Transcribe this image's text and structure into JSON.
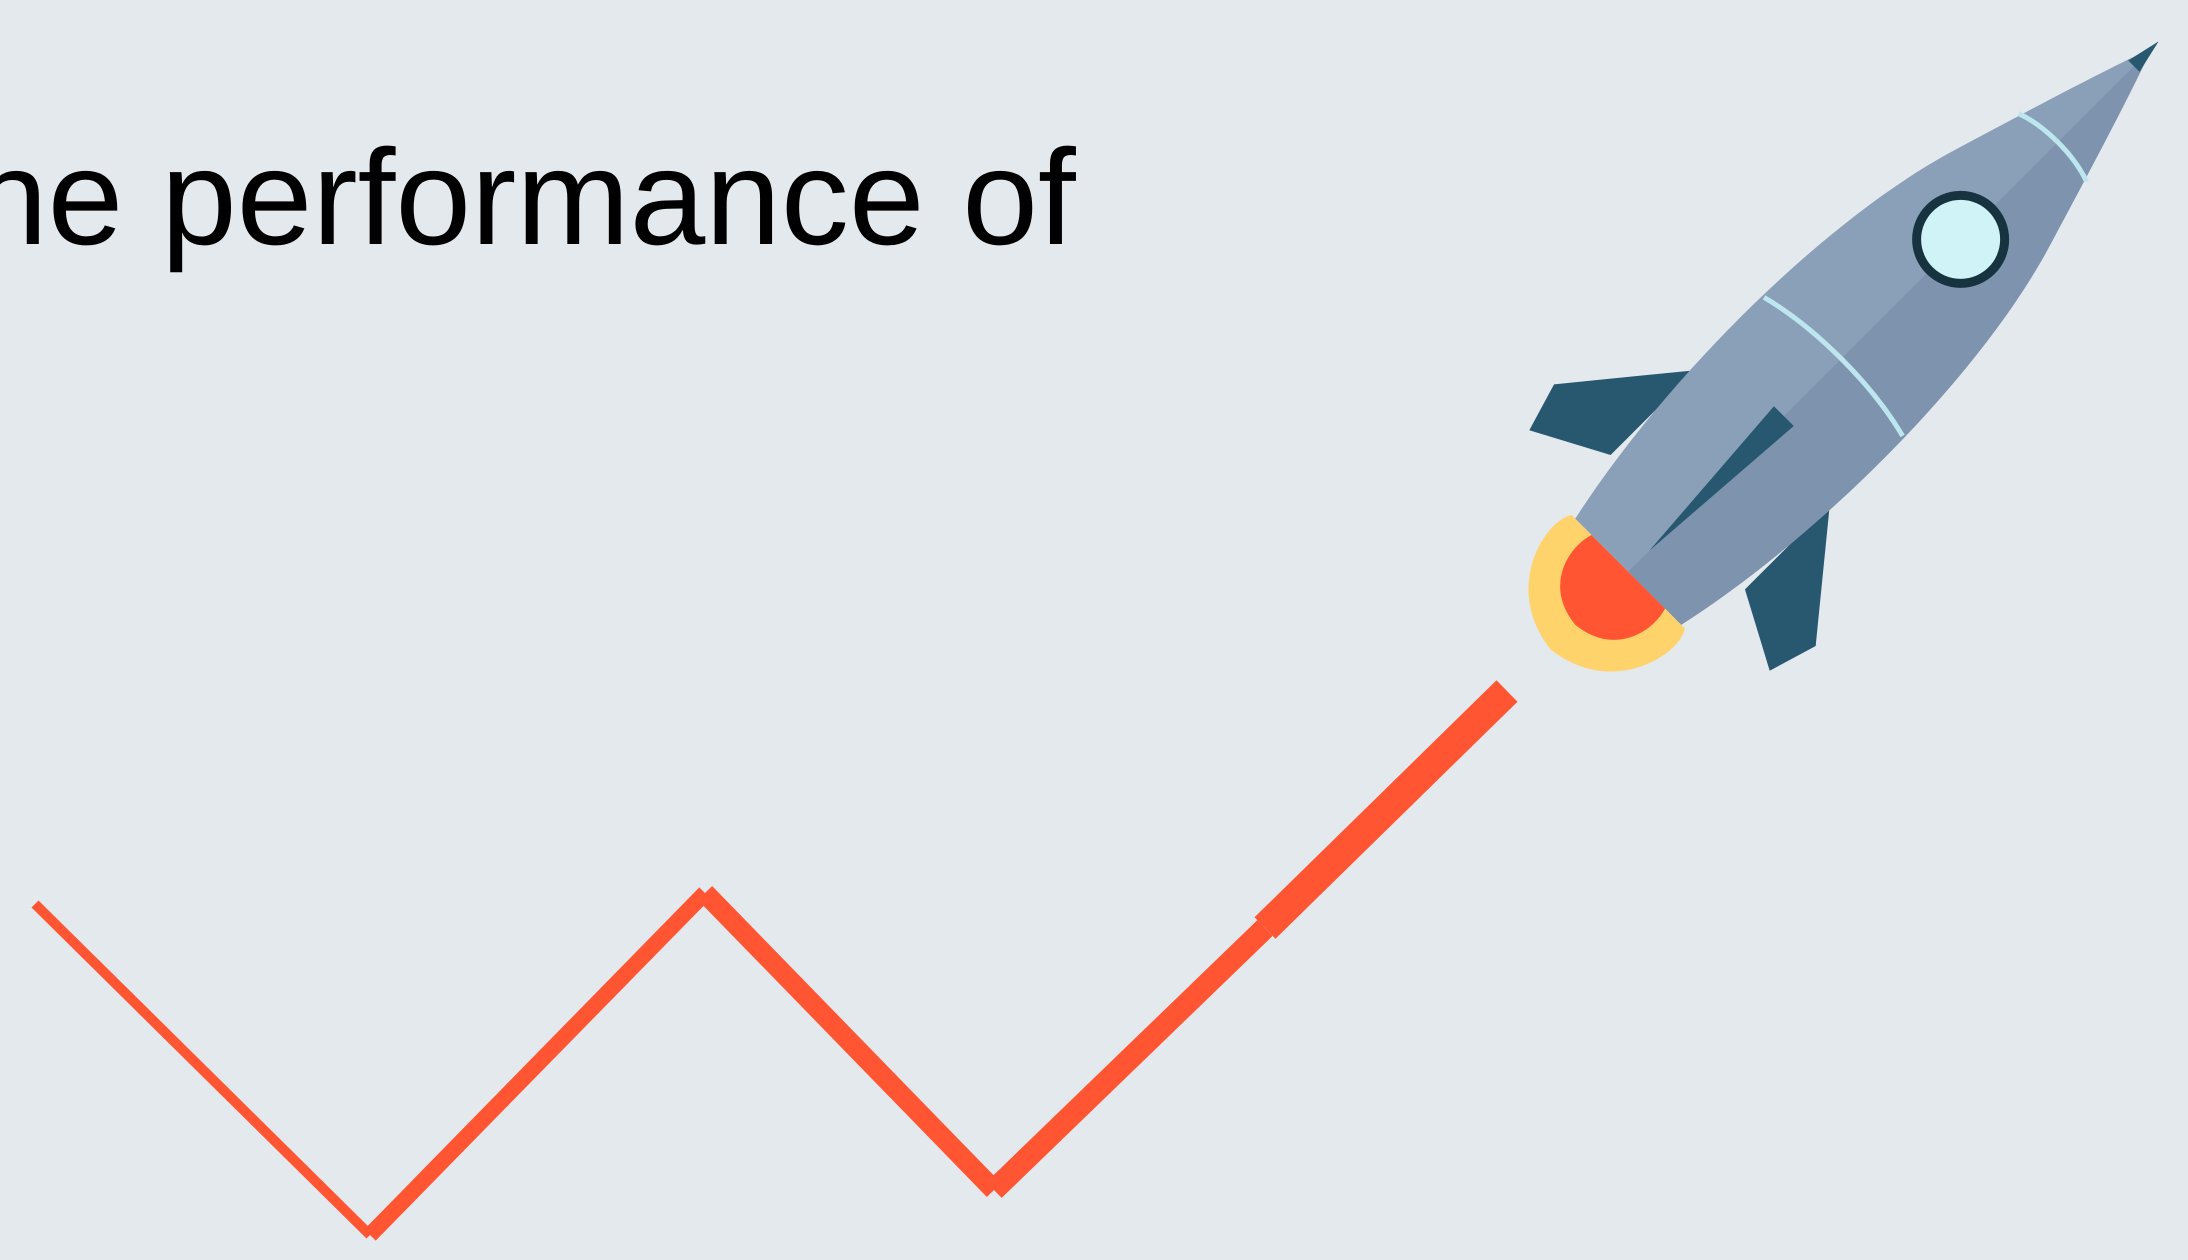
{
  "slide": {
    "text": "he performance of"
  }
}
